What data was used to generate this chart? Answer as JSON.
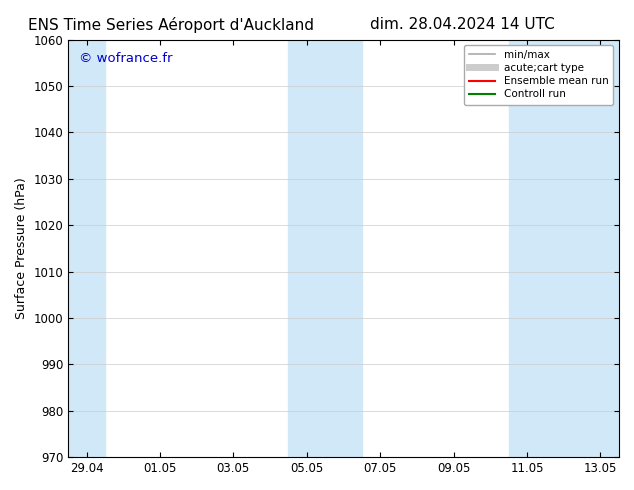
{
  "title_left": "ENS Time Series Aéroport d'Auckland",
  "title_right": "dim. 28.04.2024 14 UTC",
  "ylabel": "Surface Pressure (hPa)",
  "ylim": [
    970,
    1060
  ],
  "yticks": [
    970,
    980,
    990,
    1000,
    1010,
    1020,
    1030,
    1040,
    1050,
    1060
  ],
  "xlim_start": "2024-04-29",
  "xlim_end": "2024-05-14",
  "xtick_labels": [
    "29.04",
    "01.05",
    "03.05",
    "05.05",
    "07.05",
    "09.05",
    "11.05",
    "13.05"
  ],
  "xtick_positions": [
    0,
    2,
    4,
    6,
    8,
    10,
    12,
    14
  ],
  "watermark": "© wofrance.fr",
  "watermark_color": "#0000cc",
  "background_color": "#ffffff",
  "plot_bg_color": "#ffffff",
  "shaded_bands": [
    {
      "x_start": 0,
      "x_end": 0.5,
      "color": "#d0e8f8"
    },
    {
      "x_start": 6,
      "x_end": 7,
      "color": "#d0e8f8"
    },
    {
      "x_start": 12,
      "x_end": 13,
      "color": "#d0e8f8"
    }
  ],
  "legend_items": [
    {
      "label": "min/max",
      "color": "#aaaaaa",
      "lw": 1.2,
      "ls": "-"
    },
    {
      "label": "acute;cart type",
      "color": "#cccccc",
      "lw": 5,
      "ls": "-"
    },
    {
      "label": "Ensemble mean run",
      "color": "#ff0000",
      "lw": 1.5,
      "ls": "-"
    },
    {
      "label": "Controll run",
      "color": "#008000",
      "lw": 1.5,
      "ls": "-"
    }
  ],
  "grid_color": "#cccccc",
  "title_fontsize": 11,
  "tick_fontsize": 8.5,
  "ylabel_fontsize": 9
}
